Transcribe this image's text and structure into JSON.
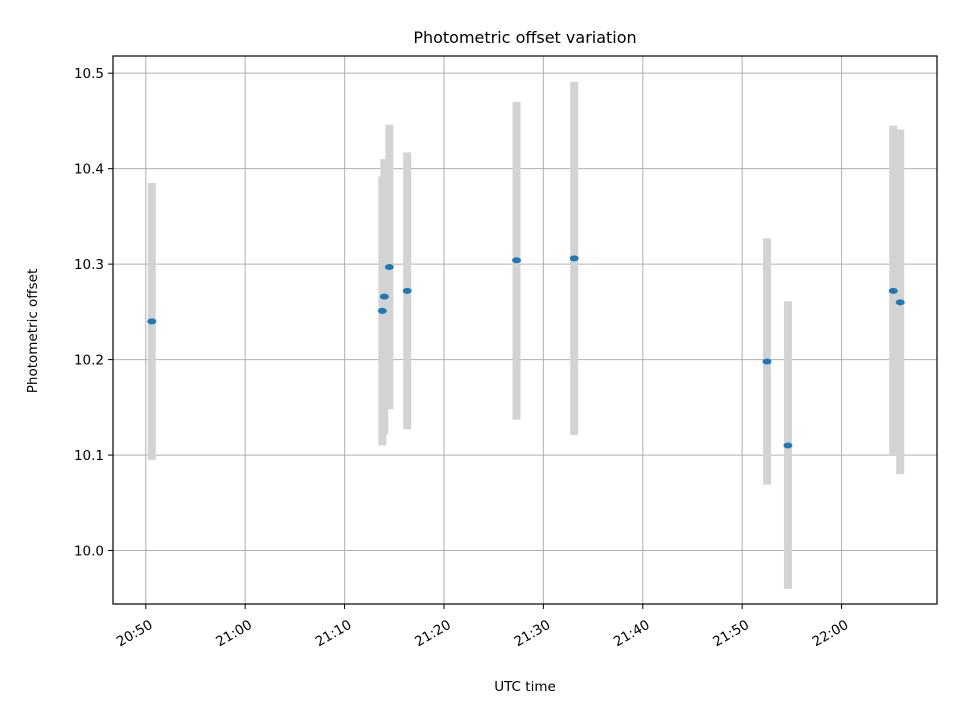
{
  "chart_data": {
    "type": "scatter",
    "title": "Photometric offset variation",
    "xlabel": "UTC time",
    "ylabel": "Photometric offset",
    "xlim": [
      "20:46.7",
      "22:09.6"
    ],
    "ylim": [
      9.944,
      10.518
    ],
    "x_ticks": [
      "20:50",
      "21:00",
      "21:10",
      "21:20",
      "21:30",
      "21:40",
      "21:50",
      "22:00"
    ],
    "y_ticks": [
      "10.0",
      "10.1",
      "10.2",
      "10.3",
      "10.4",
      "10.5"
    ],
    "grid": true,
    "errorbar_color": "#d3d3d3",
    "point_color": "#1f77b4",
    "points": [
      {
        "time": "20:50.6",
        "offset": 10.24,
        "err_low": 10.095,
        "err_high": 10.385
      },
      {
        "time": "21:13.8",
        "offset": 10.251,
        "err_low": 10.11,
        "err_high": 10.392
      },
      {
        "time": "21:14.0",
        "offset": 10.266,
        "err_low": 10.122,
        "err_high": 10.41
      },
      {
        "time": "21:14.5",
        "offset": 10.297,
        "err_low": 10.148,
        "err_high": 10.446
      },
      {
        "time": "21:16.3",
        "offset": 10.272,
        "err_low": 10.127,
        "err_high": 10.417
      },
      {
        "time": "21:27.3",
        "offset": 10.304,
        "err_low": 10.137,
        "err_high": 10.47
      },
      {
        "time": "21:33.1",
        "offset": 10.306,
        "err_low": 10.121,
        "err_high": 10.491
      },
      {
        "time": "21:52.5",
        "offset": 10.198,
        "err_low": 10.069,
        "err_high": 10.327
      },
      {
        "time": "21:54.6",
        "offset": 10.11,
        "err_low": 9.96,
        "err_high": 10.261
      },
      {
        "time": "22:05.2",
        "offset": 10.272,
        "err_low": 10.099,
        "err_high": 10.445
      },
      {
        "time": "22:05.9",
        "offset": 10.26,
        "err_low": 10.08,
        "err_high": 10.441
      }
    ]
  }
}
